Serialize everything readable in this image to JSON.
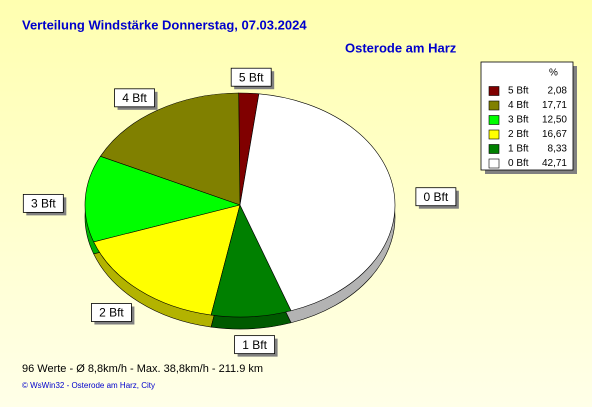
{
  "chart_data": {
    "type": "pie",
    "title": "Verteilung Windstärke  Donnerstag, 07.03.2024",
    "subtitle": "Osterode am Harz",
    "legend_title": "%",
    "categories": [
      "5 Bft",
      "4 Bft",
      "3 Bft",
      "2 Bft",
      "1 Bft",
      "0 Bft"
    ],
    "values": [
      2.08,
      17.71,
      12.5,
      16.67,
      8.33,
      42.71
    ],
    "value_labels": [
      "2,08",
      "17,71",
      "12,50",
      "16,67",
      "8,33",
      "42,71"
    ],
    "colors": [
      "#800000",
      "#808000",
      "#00ff00",
      "#ffff00",
      "#008000",
      "#ffffff"
    ],
    "legend": "right",
    "footer": "96 Werte   -   Ø 8,8km/h  -  Max. 38,8km/h   -   211.9 km",
    "credit": "© WsWin32  -  Osterode am Harz, City"
  }
}
